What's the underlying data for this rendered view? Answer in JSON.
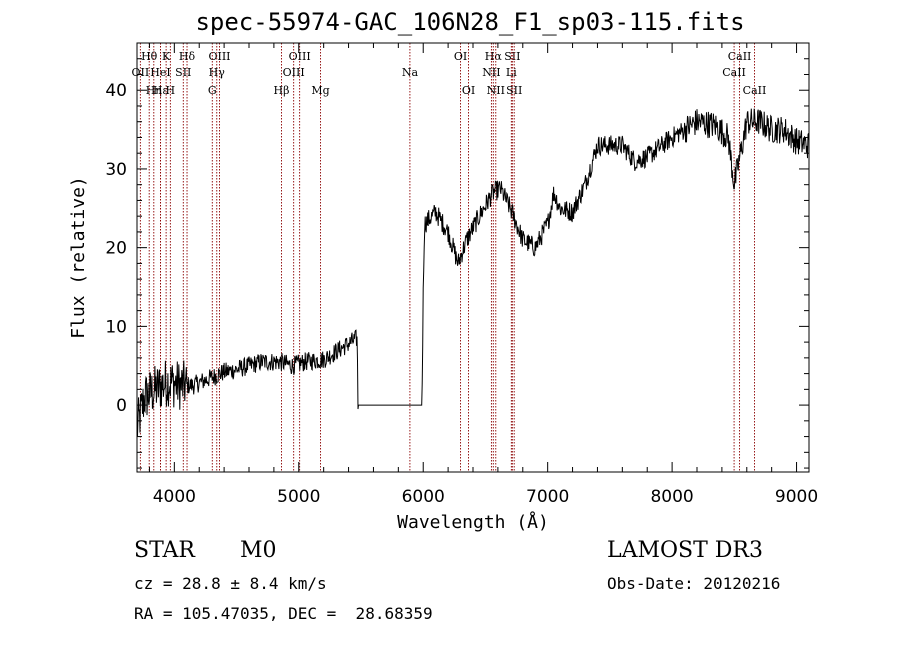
{
  "title": "spec-55974-GAC_106N28_F1_sp03-115.fits",
  "info": {
    "class": "STAR",
    "subclass": "M0",
    "survey": "LAMOST DR3",
    "cz": "cz = 28.8 ± 8.4 km/s",
    "obs_date": "Obs-Date: 20120216",
    "radec": "RA = 105.47035, DEC =  28.68359"
  },
  "colors": {
    "line": "#8b0000",
    "spectrum": "#000000",
    "axis": "#000000"
  },
  "chart_data": {
    "type": "line",
    "title": "spec-55974-GAC_106N28_F1_sp03-115.fits",
    "xlabel": "Wavelength (Å)",
    "ylabel": "Flux (relative)",
    "xlim": [
      3700,
      9100
    ],
    "ylim": [
      -8.5,
      46
    ],
    "xticks": [
      4000,
      5000,
      6000,
      7000,
      8000,
      9000
    ],
    "xtick_labels": [
      "4000",
      "5000",
      "6000",
      "7000",
      "8000",
      "9000"
    ],
    "yticks": [
      0,
      10,
      20,
      30,
      40
    ],
    "ytick_labels": [
      "0",
      "10",
      "20",
      "30",
      "40"
    ],
    "x_minor_step": 200,
    "y_minor_step": 2,
    "spectrum_anchors": [
      [
        3700,
        -3
      ],
      [
        3760,
        1
      ],
      [
        3850,
        2
      ],
      [
        3950,
        3
      ],
      [
        4050,
        2.5
      ],
      [
        4150,
        2.5
      ],
      [
        4300,
        3.5
      ],
      [
        4400,
        4.2
      ],
      [
        4500,
        4.5
      ],
      [
        4700,
        5.5
      ],
      [
        4850,
        5.5
      ],
      [
        4950,
        5
      ],
      [
        5050,
        5.5
      ],
      [
        5200,
        5.8
      ],
      [
        5300,
        6.8
      ],
      [
        5400,
        7.8
      ],
      [
        5470,
        8.5
      ],
      [
        5475,
        0
      ],
      [
        5990,
        0
      ],
      [
        6000,
        14
      ],
      [
        6010,
        23
      ],
      [
        6100,
        24.5
      ],
      [
        6200,
        22
      ],
      [
        6280,
        18
      ],
      [
        6350,
        21
      ],
      [
        6450,
        24
      ],
      [
        6560,
        27
      ],
      [
        6620,
        27.5
      ],
      [
        6700,
        25
      ],
      [
        6800,
        21
      ],
      [
        6900,
        20
      ],
      [
        7000,
        23
      ],
      [
        7050,
        27
      ],
      [
        7100,
        25
      ],
      [
        7200,
        24.5
      ],
      [
        7300,
        28
      ],
      [
        7400,
        33
      ],
      [
        7600,
        33
      ],
      [
        7700,
        31
      ],
      [
        7800,
        31.5
      ],
      [
        8000,
        34
      ],
      [
        8200,
        36
      ],
      [
        8350,
        35.5
      ],
      [
        8450,
        34
      ],
      [
        8500,
        28
      ],
      [
        8550,
        32
      ],
      [
        8600,
        36
      ],
      [
        8700,
        36
      ],
      [
        8800,
        35
      ],
      [
        8900,
        35
      ],
      [
        9000,
        33.5
      ],
      [
        9100,
        33
      ]
    ],
    "lines": [
      {
        "label": "Hθ",
        "wave": 3798,
        "row": 1
      },
      {
        "label": "OII",
        "wave": 3727,
        "row": 2
      },
      {
        "label": "Hη",
        "wave": 3835,
        "row": 3
      },
      {
        "label": "HeI",
        "wave": 3889,
        "row": 2
      },
      {
        "label": "Hε",
        "wave": 3889,
        "row": 3
      },
      {
        "label": "K",
        "wave": 3934,
        "row": 1
      },
      {
        "label": "SII",
        "wave": 4072,
        "row": 2
      },
      {
        "label": "H",
        "wave": 3968,
        "row": 3
      },
      {
        "label": "Hδ",
        "wave": 4102,
        "row": 1
      },
      {
        "label": "OIII",
        "wave": 4363,
        "row": 1
      },
      {
        "label": "Hγ",
        "wave": 4341,
        "row": 2
      },
      {
        "label": "G",
        "wave": 4305,
        "row": 3
      },
      {
        "label": "OIII",
        "wave": 5007,
        "row": 1
      },
      {
        "label": "OIII",
        "wave": 4959,
        "row": 2
      },
      {
        "label": "Hβ",
        "wave": 4861,
        "row": 3
      },
      {
        "label": "Mg",
        "wave": 5175,
        "row": 3
      },
      {
        "label": "Na",
        "wave": 5893,
        "row": 2
      },
      {
        "label": "OI",
        "wave": 6300,
        "row": 1
      },
      {
        "label": "OI",
        "wave": 6364,
        "row": 3
      },
      {
        "label": "Hα",
        "wave": 6563,
        "row": 1
      },
      {
        "label": "NII",
        "wave": 6548,
        "row": 2
      },
      {
        "label": "NII",
        "wave": 6583,
        "row": 3
      },
      {
        "label": "SII",
        "wave": 6716,
        "row": 1
      },
      {
        "label": "Li",
        "wave": 6708,
        "row": 2
      },
      {
        "label": "SII",
        "wave": 6731,
        "row": 3
      },
      {
        "label": "CaII",
        "wave": 8542,
        "row": 1
      },
      {
        "label": "CaII",
        "wave": 8498,
        "row": 2
      },
      {
        "label": "CaII",
        "wave": 8662,
        "row": 3
      }
    ]
  }
}
